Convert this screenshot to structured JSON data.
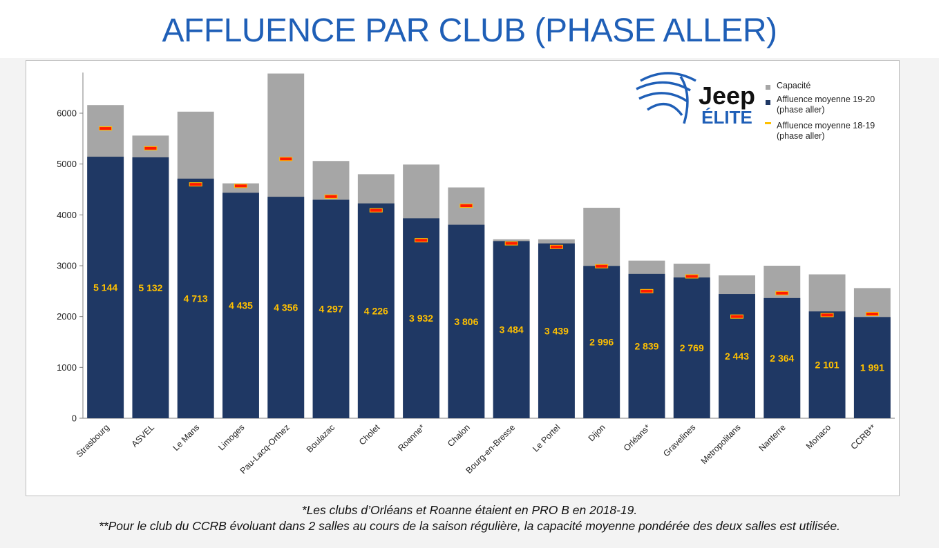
{
  "page": {
    "title": "AFFLUENCE PAR CLUB (PHASE ALLER)",
    "footnote_1": "*Les clubs d’Orléans et Roanne étaient en PRO B en 2018-19.",
    "footnote_2": "**Pour le club du CCRB évoluant dans 2 salles au cours de la saison régulière, la capacité moyenne pondérée des deux salles est utilisée."
  },
  "logo": {
    "brand": "Jeep",
    "sub": "ÉLITE",
    "icon": "basketball-icon"
  },
  "colors": {
    "capacity": "#a6a6a6",
    "attendance": "#1f3864",
    "prev_marker_fill": "#ff1a00",
    "prev_marker_edge": "#ffc000",
    "value_label": "#ffc000",
    "title": "#1f5fb7"
  },
  "chart_data": {
    "type": "bar",
    "categories": [
      "Strasbourg",
      "ASVEL",
      "Le Mans",
      "Limoges",
      "Pau-Lacq-Orthez",
      "Boulazac",
      "Cholet",
      "Roanne*",
      "Chalon",
      "Bourg-en-Bresse",
      "Le Portel",
      "Dijon",
      "Orléans*",
      "Gravelines",
      "Metropolitans",
      "Nanterre",
      "Monaco",
      "CCRB**"
    ],
    "series": [
      {
        "name": "Capacité",
        "values": [
          6160,
          5560,
          6030,
          4620,
          6780,
          5060,
          4800,
          4990,
          4540,
          3520,
          3520,
          4140,
          3100,
          3040,
          2810,
          3000,
          2830,
          2560
        ]
      },
      {
        "name": "Affluence moyenne 19-20 (phase aller)",
        "values": [
          5144,
          5132,
          4713,
          4435,
          4356,
          4297,
          4226,
          3932,
          3806,
          3484,
          3439,
          2996,
          2839,
          2769,
          2443,
          2364,
          2101,
          1991
        ]
      },
      {
        "name": "Affluence moyenne 18-19 (phase aller)",
        "values": [
          5700,
          5310,
          4600,
          4570,
          5100,
          4360,
          4090,
          3500,
          4180,
          3440,
          3370,
          2990,
          2500,
          2790,
          2000,
          2460,
          2030,
          2050
        ]
      }
    ],
    "value_labels": [
      "5 144",
      "5 132",
      "4 713",
      "4 435",
      "4 356",
      "4 297",
      "4 226",
      "3 932",
      "3 806",
      "3 484",
      "3 439",
      "2 996",
      "2 839",
      "2 769",
      "2 443",
      "2 364",
      "2 101",
      "1 991"
    ],
    "legend": [
      {
        "label_lines": [
          "Capacité"
        ]
      },
      {
        "label_lines": [
          "Affluence moyenne 19-20",
          "(phase aller)"
        ]
      },
      {
        "label_lines": [
          "Affluence moyenne 18-19",
          "(phase aller)"
        ]
      }
    ],
    "y_ticks": [
      0,
      1000,
      2000,
      3000,
      4000,
      5000,
      6000
    ],
    "ylim": [
      0,
      6800
    ],
    "legend_position": "top-right",
    "grid": false
  }
}
